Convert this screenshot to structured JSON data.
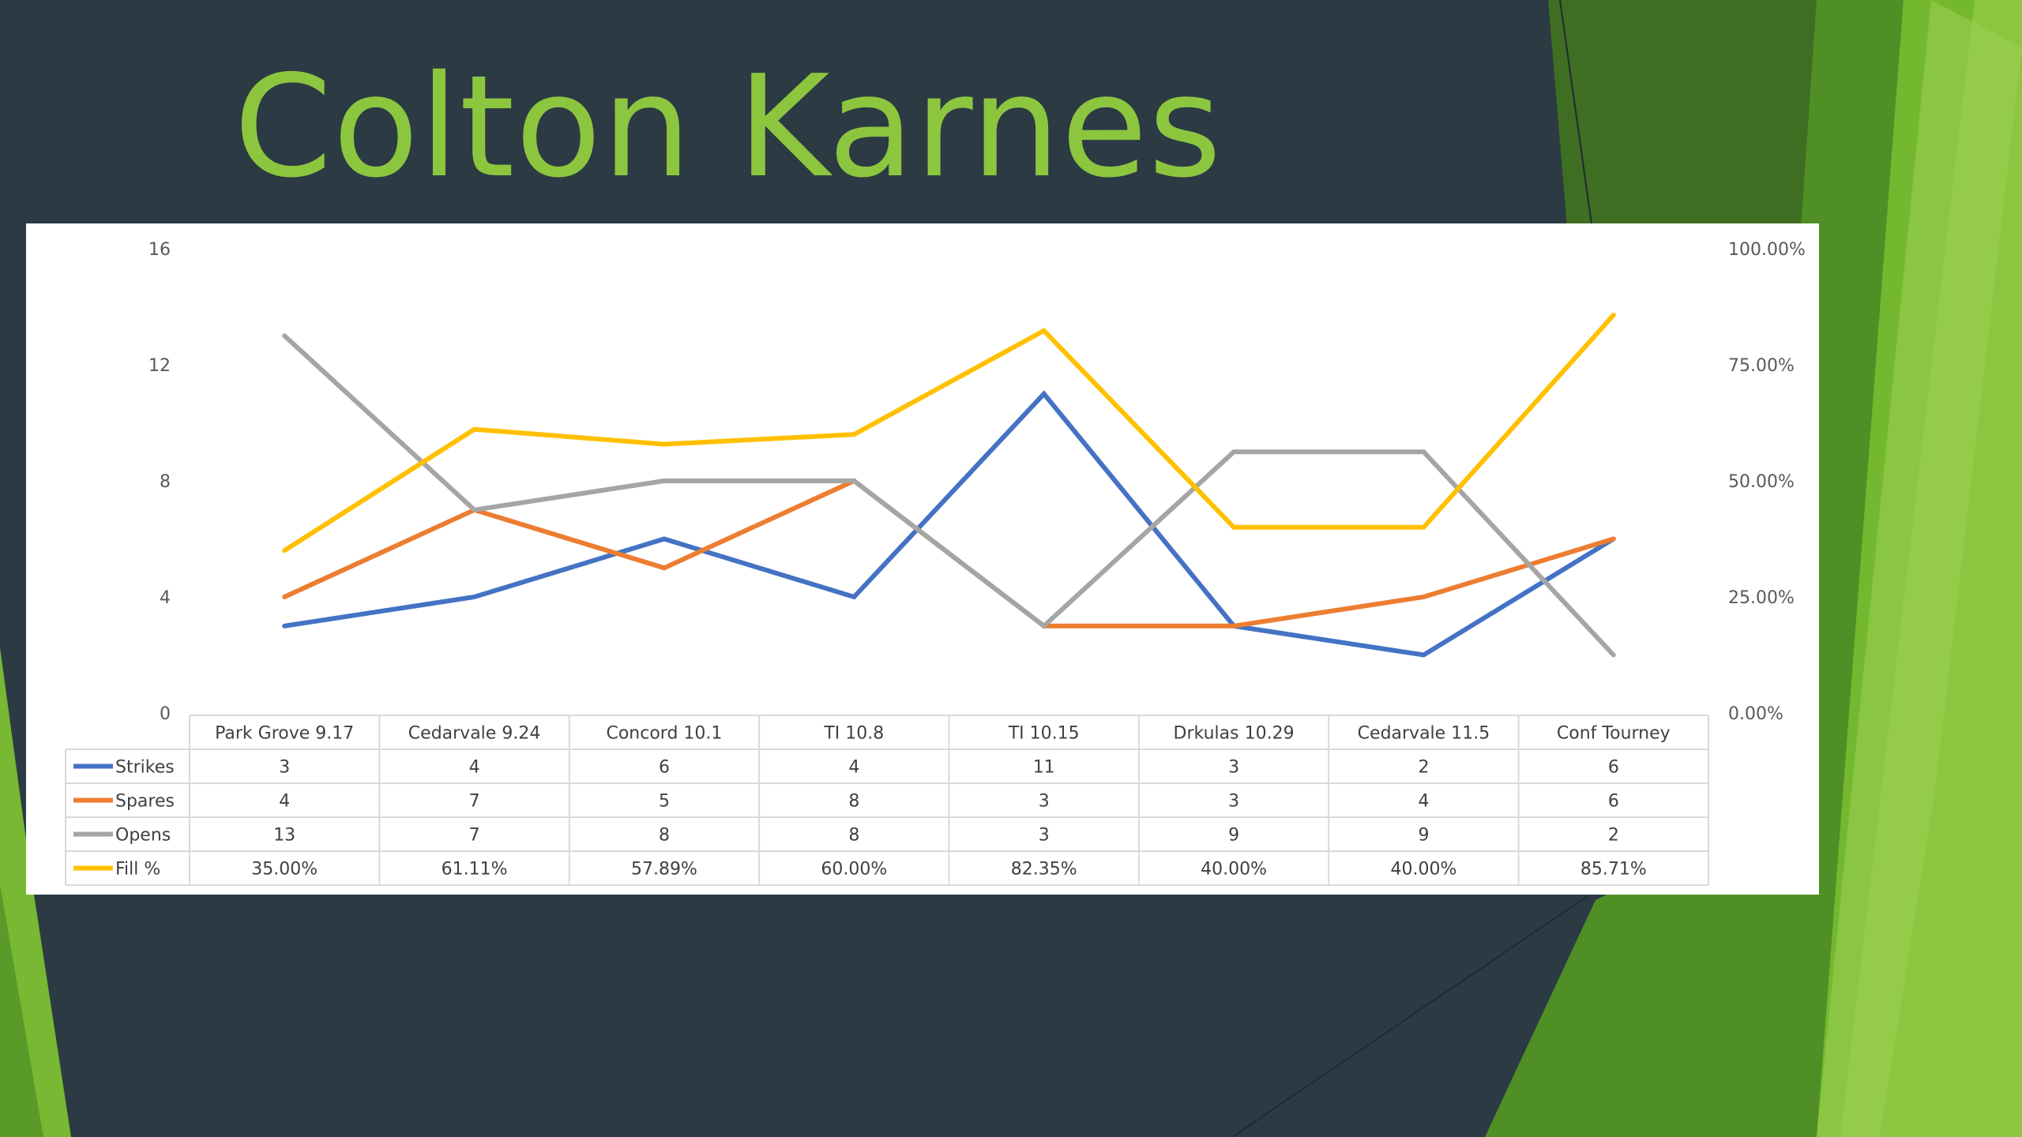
{
  "slide": {
    "title": "Colton Karnes"
  },
  "chart_data": {
    "type": "line",
    "title": "",
    "categories": [
      "Park Grove 9.17",
      "Cedarvale 9.24",
      "Concord 10.1",
      "TI 10.8",
      "TI 10.15",
      "Drkulas 10.29",
      "Cedarvale 11.5",
      "Conf Tourney"
    ],
    "y_axis": {
      "min": 0,
      "max": 16,
      "ticks": [
        "0",
        "4",
        "8",
        "12",
        "16"
      ]
    },
    "y2_axis": {
      "min": 0,
      "max": 1,
      "ticks": [
        "0.00%",
        "25.00%",
        "50.00%",
        "75.00%",
        "100.00%"
      ]
    },
    "grid": false,
    "legend": "data-table",
    "series": [
      {
        "name": "Strikes",
        "axis": "left",
        "color": "#4472c4",
        "values": [
          3,
          4,
          6,
          4,
          11,
          3,
          2,
          6
        ],
        "labels": [
          "3",
          "4",
          "6",
          "4",
          "11",
          "3",
          "2",
          "6"
        ]
      },
      {
        "name": "Spares",
        "axis": "left",
        "color": "#ed7d31",
        "values": [
          4,
          7,
          5,
          8,
          3,
          3,
          4,
          6
        ],
        "labels": [
          "4",
          "7",
          "5",
          "8",
          "3",
          "3",
          "4",
          "6"
        ]
      },
      {
        "name": "Opens",
        "axis": "left",
        "color": "#a5a5a5",
        "values": [
          13,
          7,
          8,
          8,
          3,
          9,
          9,
          2
        ],
        "labels": [
          "13",
          "7",
          "8",
          "8",
          "3",
          "9",
          "9",
          "2"
        ]
      },
      {
        "name": "Fill %",
        "axis": "right",
        "color": "#ffc000",
        "values": [
          0.35,
          0.6111,
          0.5789,
          0.6,
          0.8235,
          0.4,
          0.4,
          0.8571
        ],
        "labels": [
          "35.00%",
          "61.11%",
          "57.89%",
          "60.00%",
          "82.35%",
          "40.00%",
          "40.00%",
          "85.71%"
        ]
      }
    ]
  },
  "colors": {
    "background": "#2c3a44",
    "title": "#8cc63f"
  }
}
